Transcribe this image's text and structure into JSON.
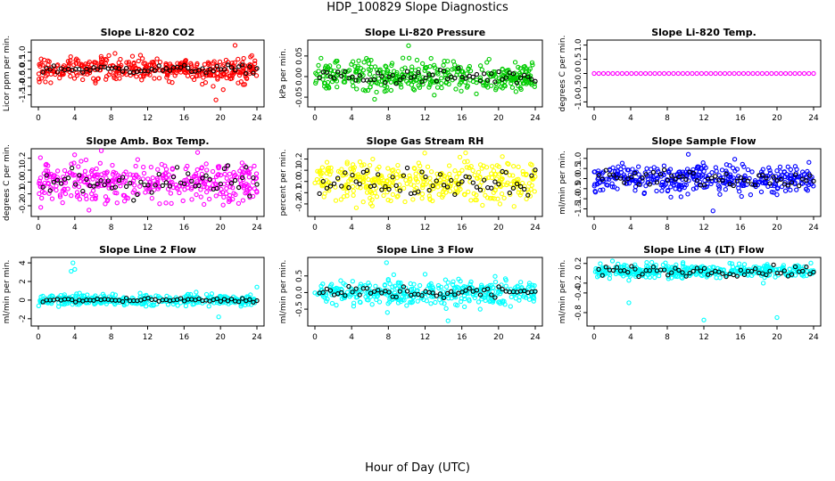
{
  "title": "HDP_100829  Slope Diagnostics",
  "xlabel": "Hour of Day (UTC)",
  "chart_data": [
    {
      "type": "scatter",
      "title": "Slope Li-820 CO2",
      "ylabel": "Licor ppm per min.",
      "color": "#ff0000",
      "xlim": [
        0,
        24
      ],
      "xticks": [
        0,
        4,
        8,
        12,
        16,
        20,
        24
      ],
      "ylim": [
        -2.0,
        1.5
      ],
      "yticks": [
        -1.5,
        -1.0,
        -0.5,
        0.0,
        0.5,
        1.0
      ],
      "ytick_labels": [
        "-1.5",
        "-1.0",
        "-0.5",
        "0.0",
        "0.5",
        "1.0"
      ],
      "bulk_center": 0.0,
      "bulk_spread": 0.35,
      "black_spread": 0.12,
      "outliers": [
        {
          "x": 19.5,
          "y": -1.8
        },
        {
          "x": 20.3,
          "y": -1.2
        },
        {
          "x": 21.6,
          "y": 1.4
        },
        {
          "x": 19.2,
          "y": -1.0
        },
        {
          "x": 22.5,
          "y": -0.9
        }
      ]
    },
    {
      "type": "scatter",
      "title": "Slope Li-820 Pressure",
      "ylabel": "kPa per min.",
      "color": "#00cc00",
      "xlim": [
        0,
        24
      ],
      "xticks": [
        0,
        4,
        8,
        12,
        16,
        20,
        24
      ],
      "ylim": [
        -0.065,
        0.08
      ],
      "yticks": [
        -0.05,
        0.0,
        0.05
      ],
      "ytick_labels": [
        "-0.05",
        "0.00",
        "0.05"
      ],
      "bulk_center": 0.0,
      "bulk_spread": 0.018,
      "black_spread": 0.009,
      "outliers": [
        {
          "x": 10.2,
          "y": 0.075
        },
        {
          "x": 6.5,
          "y": -0.055
        },
        {
          "x": 13.0,
          "y": -0.045
        }
      ]
    },
    {
      "type": "scatter",
      "title": "Slope Li-820 Temp.",
      "ylabel": "degrees C per min.",
      "color": "#ff00ff",
      "xlim": [
        0,
        24
      ],
      "xticks": [
        0,
        4,
        8,
        12,
        16,
        20,
        24
      ],
      "ylim": [
        -1.05,
        1.05
      ],
      "yticks": [
        -1.0,
        -0.5,
        0.0,
        0.5,
        1.0
      ],
      "ytick_labels": [
        "-1.0",
        "-0.5",
        "0.0",
        "0.5",
        "1.0"
      ],
      "bulk_center": 0.0,
      "bulk_spread": 0.0,
      "black_spread": 0.0,
      "outliers": []
    },
    {
      "type": "scatter",
      "title": "Slope Amb. Box Temp.",
      "ylabel": "degrees C per min.",
      "color": "#ff00ff",
      "xlim": [
        0,
        24
      ],
      "xticks": [
        0,
        4,
        8,
        12,
        16,
        20,
        24
      ],
      "ylim": [
        -0.26,
        0.25
      ],
      "yticks": [
        -0.2,
        -0.1,
        0.0,
        0.1,
        0.2
      ],
      "ytick_labels": [
        "-0.2",
        "-0.1",
        "0.0",
        "0.1",
        "0.2"
      ],
      "bulk_center": 0.0,
      "bulk_spread": 0.09,
      "black_spread": 0.07,
      "outliers": []
    },
    {
      "type": "scatter",
      "title": "Slope Gas Stream RH",
      "ylabel": "percent per min.",
      "color": "#ffff00",
      "xlim": [
        0,
        24
      ],
      "xticks": [
        0,
        4,
        8,
        12,
        16,
        20,
        24
      ],
      "ylim": [
        -0.28,
        0.26
      ],
      "yticks": [
        -0.2,
        -0.1,
        0.0,
        0.1,
        0.2
      ],
      "ytick_labels": [
        "-0.2",
        "-0.1",
        "0.0",
        "0.1",
        "0.2"
      ],
      "bulk_center": 0.0,
      "bulk_spread": 0.09,
      "black_spread": 0.06,
      "outliers": []
    },
    {
      "type": "scatter",
      "title": "Slope Sample Flow",
      "ylabel": "ml/min per min.",
      "color": "#0000ff",
      "xlim": [
        0,
        24
      ],
      "xticks": [
        0,
        4,
        8,
        12,
        16,
        20,
        24
      ],
      "ylim": [
        -1.7,
        1.3
      ],
      "yticks": [
        -1.5,
        -1.0,
        -0.5,
        0.0,
        0.5,
        1.0
      ],
      "ytick_labels": [
        "-1.5",
        "-1.0",
        "-0.5",
        "0.0",
        "0.5",
        "1.0"
      ],
      "bulk_center": 0.0,
      "bulk_spread": 0.35,
      "black_spread": 0.2,
      "outliers": [
        {
          "x": 10.3,
          "y": 1.2
        },
        {
          "x": 13.0,
          "y": -1.6
        },
        {
          "x": 9.5,
          "y": -0.9
        },
        {
          "x": 20.0,
          "y": -0.8
        }
      ]
    },
    {
      "type": "scatter",
      "title": "Slope Line 2 Flow",
      "ylabel": "ml/min per min.",
      "color": "#00ffff",
      "xlim": [
        0,
        24
      ],
      "xticks": [
        0,
        4,
        8,
        12,
        16,
        20,
        24
      ],
      "ylim": [
        -2.4,
        4.2
      ],
      "yticks": [
        -2,
        0,
        2,
        4
      ],
      "ytick_labels": [
        "-2",
        "0",
        "2",
        "4"
      ],
      "bulk_center": 0.0,
      "bulk_spread": 0.3,
      "black_spread": 0.1,
      "outliers": [
        {
          "x": 3.8,
          "y": 4.0
        },
        {
          "x": 3.6,
          "y": 3.1
        },
        {
          "x": 4.0,
          "y": 3.3
        },
        {
          "x": 19.8,
          "y": -1.8
        },
        {
          "x": 24.0,
          "y": 1.4
        }
      ]
    },
    {
      "type": "scatter",
      "title": "Slope Line 3 Flow",
      "ylabel": "ml/min per min.",
      "color": "#00ffff",
      "xlim": [
        0,
        24
      ],
      "xticks": [
        0,
        4,
        8,
        12,
        16,
        20,
        24
      ],
      "ylim": [
        -0.9,
        0.95
      ],
      "yticks": [
        -0.5,
        0.0,
        0.5
      ],
      "ytick_labels": [
        "-0.5",
        "0.0",
        "0.5"
      ],
      "bulk_center": 0.0,
      "bulk_spread": 0.18,
      "black_spread": 0.1,
      "outliers": [
        {
          "x": 7.8,
          "y": 0.9
        },
        {
          "x": 7.9,
          "y": -0.6
        },
        {
          "x": 14.5,
          "y": -0.85
        },
        {
          "x": 18.0,
          "y": -0.5
        },
        {
          "x": 12.0,
          "y": 0.55
        }
      ]
    },
    {
      "type": "scatter",
      "title": "Slope Line 4 (LT) Flow",
      "ylabel": "ml/min per min.",
      "color": "#00ffff",
      "xlim": [
        0,
        24
      ],
      "xticks": [
        0,
        4,
        8,
        12,
        16,
        20,
        24
      ],
      "ylim": [
        -1.0,
        0.25
      ],
      "yticks": [
        -0.8,
        -0.4,
        -0.2,
        0.2
      ],
      "ytick_labels": [
        "-0.8",
        "-0.4",
        "-0.2",
        "0.2"
      ],
      "bulk_center": 0.05,
      "bulk_spread": 0.07,
      "black_spread": 0.05,
      "outliers": [
        {
          "x": 3.8,
          "y": -0.6
        },
        {
          "x": 12.0,
          "y": -0.95
        },
        {
          "x": 20.0,
          "y": -0.9
        },
        {
          "x": 2.0,
          "y": 0.25
        },
        {
          "x": 18.5,
          "y": -0.2
        }
      ]
    }
  ]
}
